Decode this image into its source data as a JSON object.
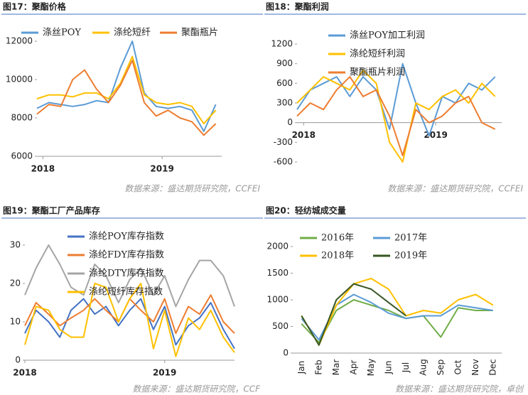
{
  "chart_data": [
    {
      "type": "line",
      "title": "图17：聚酯价格",
      "source": "数据来源：盛达期货研究院，CCFEI",
      "x": [
        2017.95,
        2018.05,
        2018.15,
        2018.25,
        2018.35,
        2018.45,
        2018.55,
        2018.65,
        2018.75,
        2018.85,
        2018.95,
        2019.05,
        2019.15,
        2019.25,
        2019.35,
        2019.45
      ],
      "series": [
        {
          "name": "涤丝POY",
          "color": "#5b9bd5",
          "values": [
            8500,
            8800,
            8700,
            8600,
            8700,
            8900,
            8800,
            10600,
            12000,
            9300,
            8600,
            8500,
            8600,
            8400,
            7300,
            8700
          ]
        },
        {
          "name": "涤纶短纤",
          "color": "#ffc000",
          "values": [
            9000,
            9200,
            9200,
            9100,
            9300,
            9300,
            9000,
            9800,
            11200,
            9200,
            8800,
            8700,
            8800,
            8600,
            7700,
            8400
          ]
        },
        {
          "name": "聚酯瓶片",
          "color": "#ed7d31",
          "values": [
            8200,
            8700,
            8600,
            10000,
            10500,
            9500,
            8800,
            9700,
            11000,
            8800,
            8100,
            8400,
            8000,
            7800,
            7100,
            7700
          ]
        }
      ],
      "xlim": [
        2017.95,
        2019.5
      ],
      "xticks": [
        2018,
        2019
      ],
      "ylim": [
        6000,
        12000
      ],
      "yticks": [
        6000,
        8000,
        10000,
        12000
      ]
    },
    {
      "type": "line",
      "title": "图18：聚酯利润",
      "source": "数据来源：盛达期货研究院，CCFEI",
      "x": [
        2017.95,
        2018.05,
        2018.15,
        2018.25,
        2018.35,
        2018.45,
        2018.55,
        2018.65,
        2018.75,
        2018.85,
        2018.95,
        2019.05,
        2019.15,
        2019.25,
        2019.35,
        2019.45
      ],
      "series": [
        {
          "name": "涤丝POY加工利润",
          "color": "#5b9bd5",
          "values": [
            200,
            500,
            600,
            700,
            400,
            700,
            500,
            -100,
            900,
            300,
            -200,
            400,
            300,
            600,
            500,
            700
          ]
        },
        {
          "name": "涤纶短纤利润",
          "color": "#ffc000",
          "values": [
            300,
            500,
            700,
            600,
            500,
            800,
            600,
            -300,
            -600,
            300,
            200,
            400,
            500,
            300,
            600,
            400
          ]
        },
        {
          "name": "聚酯瓶片利润",
          "color": "#ed7d31",
          "values": [
            100,
            300,
            200,
            500,
            700,
            400,
            500,
            100,
            -500,
            200,
            0,
            100,
            300,
            400,
            0,
            -100
          ]
        }
      ],
      "xlim": [
        2017.95,
        2019.5
      ],
      "xticks": [
        2018,
        2019
      ],
      "ylim": [
        -600,
        1200
      ],
      "yticks": [
        -600,
        -300,
        0,
        300,
        600,
        900,
        1200
      ]
    },
    {
      "type": "line",
      "title": "图19：聚酯工厂产品库存",
      "source": "数据来源：盛达期货研究院，CCF",
      "x": [
        2018.0,
        2018.08,
        2018.17,
        2018.25,
        2018.33,
        2018.42,
        2018.5,
        2018.58,
        2018.67,
        2018.75,
        2018.83,
        2018.92,
        2019.0,
        2019.08,
        2019.17,
        2019.25,
        2019.33,
        2019.42,
        2019.5
      ],
      "series": [
        {
          "name": "涤纶POY库存指数",
          "color": "#4472c4",
          "values": [
            7,
            13,
            10,
            6,
            13,
            16,
            12,
            14,
            9,
            13,
            16,
            8,
            14,
            4,
            9,
            11,
            15,
            8,
            3
          ]
        },
        {
          "name": "涤纶FDY库存指数",
          "color": "#ed7d31",
          "values": [
            9,
            15,
            12,
            9,
            11,
            13,
            16,
            13,
            10,
            16,
            13,
            10,
            16,
            7,
            14,
            12,
            17,
            10,
            7
          ]
        },
        {
          "name": "涤纶DTY库存指数",
          "color": "#a5a5a5",
          "values": [
            17,
            24,
            30,
            25,
            19,
            17,
            25,
            22,
            15,
            21,
            24,
            17,
            22,
            14,
            21,
            26,
            26,
            22,
            14
          ]
        },
        {
          "name": "涤纶短纤库存指数",
          "color": "#ffc000",
          "values": [
            4,
            14,
            13,
            8,
            6,
            6,
            20,
            19,
            10,
            16,
            20,
            3,
            13,
            1,
            11,
            8,
            13,
            6,
            2
          ]
        }
      ],
      "xlim": [
        2018.0,
        2019.5
      ],
      "xticks": [
        2018,
        2019
      ],
      "ylim": [
        0,
        30
      ],
      "yticks": [
        0,
        10,
        20,
        30
      ]
    },
    {
      "type": "category-line",
      "title": "图20：轻纺城成交量",
      "source": "数据来源：盛达期货研究院，卓创",
      "categories": [
        "Jan",
        "Feb",
        "Mar",
        "Apr",
        "May",
        "Jun",
        "Jul",
        "Aug",
        "Sep",
        "Oct",
        "Nov",
        "Dec"
      ],
      "series": [
        {
          "name": "2016年",
          "color": "#70ad47",
          "values": [
            550,
            200,
            800,
            1000,
            900,
            800,
            650,
            700,
            300,
            850,
            800,
            800
          ]
        },
        {
          "name": "2017年",
          "color": "#5b9bd5",
          "values": [
            650,
            250,
            900,
            1100,
            950,
            750,
            650,
            700,
            700,
            900,
            850,
            800
          ]
        },
        {
          "name": "2018年",
          "color": "#ffc000",
          "values": [
            700,
            150,
            900,
            1300,
            1400,
            1200,
            700,
            800,
            750,
            1000,
            1100,
            900
          ]
        },
        {
          "name": "2019年",
          "color": "#375623",
          "values": [
            700,
            150,
            1000,
            1300,
            1200,
            950,
            700,
            null,
            null,
            null,
            null,
            null
          ]
        }
      ],
      "ylim": [
        0,
        2000
      ],
      "yticks": [
        0,
        500,
        1000,
        1500,
        2000
      ]
    }
  ]
}
